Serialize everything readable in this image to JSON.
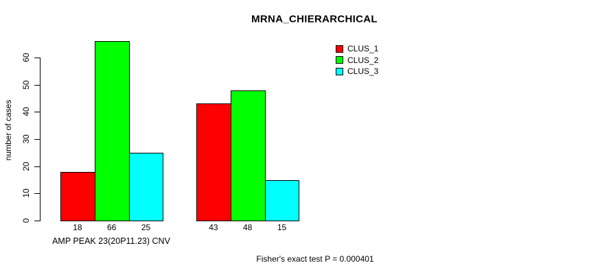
{
  "chart_data": {
    "type": "bar",
    "title": "MRNA_CHIERARCHICAL",
    "xlabel": "AMP PEAK 23(20P11.23) CNV",
    "ylabel": "number of cases",
    "footnote": "Fisher's exact test P = 0.000401",
    "ylim": [
      0,
      60
    ],
    "yticks": [
      0,
      10,
      20,
      30,
      40,
      50,
      60
    ],
    "grid": false,
    "legend_position": "top-right",
    "legend_box": false,
    "groups": 2,
    "series": [
      {
        "name": "CLUS_1",
        "color": "#ff0000",
        "values": [
          18,
          43
        ]
      },
      {
        "name": "CLUS_2",
        "color": "#00ff00",
        "values": [
          66,
          48
        ]
      },
      {
        "name": "CLUS_3",
        "color": "#00ffff",
        "values": [
          25,
          15
        ]
      }
    ],
    "bar_value_labels_shown": true,
    "axis_color": "#000000",
    "background": "#ffffff"
  }
}
